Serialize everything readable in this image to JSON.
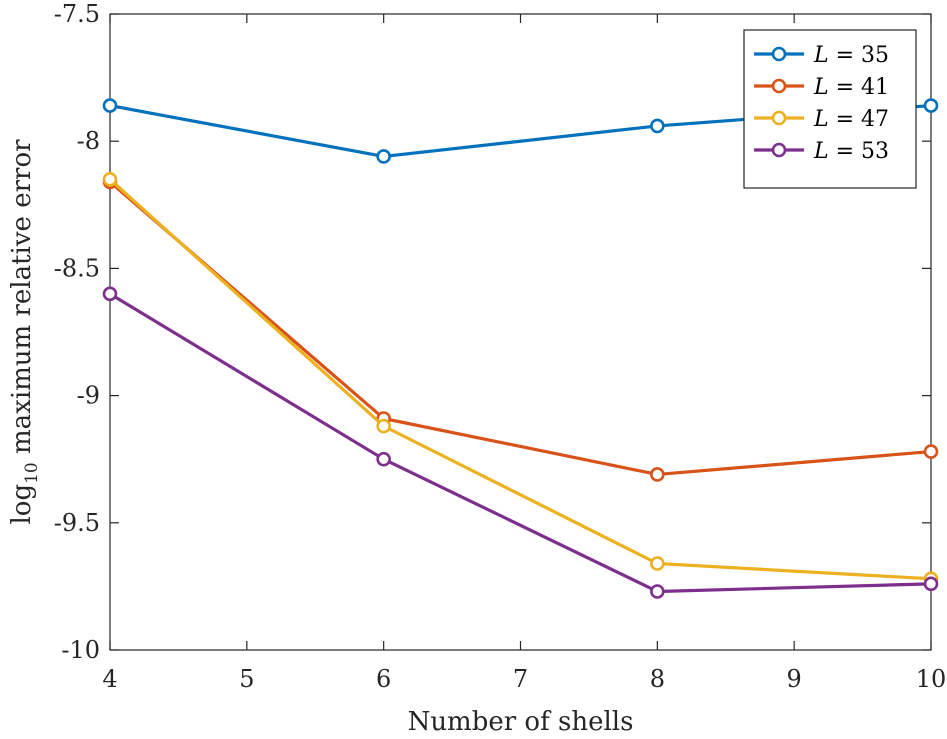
{
  "chart_data": {
    "type": "line",
    "title": "",
    "xlabel": "Number of shells",
    "ylabel_main": "log",
    "ylabel_sub": "10",
    "ylabel_rest": " maximum relative error",
    "x": [
      4,
      6,
      8,
      10
    ],
    "xlim": [
      4,
      10
    ],
    "ylim": [
      -10,
      -7.5
    ],
    "xticks": [
      4,
      5,
      6,
      7,
      8,
      9,
      10
    ],
    "xtick_labels": [
      "4",
      "5",
      "6",
      "7",
      "8",
      "9",
      "10"
    ],
    "yticks": [
      -10,
      -9.5,
      -9,
      -8.5,
      -8,
      -7.5
    ],
    "ytick_labels": [
      "-10",
      "-9.5",
      "-9",
      "-8.5",
      "-8",
      "-7.5"
    ],
    "legend_position": "top-right",
    "grid": false,
    "series": [
      {
        "name": "L = 35",
        "legend_var": "L",
        "legend_eq": " = 35",
        "color": "#0072BD",
        "values": [
          -7.86,
          -8.06,
          -7.94,
          -7.86
        ]
      },
      {
        "name": "L = 41",
        "legend_var": "L",
        "legend_eq": " = 41",
        "color": "#D95319",
        "values": [
          -8.16,
          -9.09,
          -9.31,
          -9.22
        ]
      },
      {
        "name": "L = 47",
        "legend_var": "L",
        "legend_eq": " = 47",
        "color": "#EDB120",
        "values": [
          -8.15,
          -9.12,
          -9.66,
          -9.72
        ]
      },
      {
        "name": "L = 53",
        "legend_var": "L",
        "legend_eq": " = 53",
        "color": "#7E2F8E",
        "values": [
          -8.6,
          -9.25,
          -9.77,
          -9.74
        ]
      }
    ]
  }
}
